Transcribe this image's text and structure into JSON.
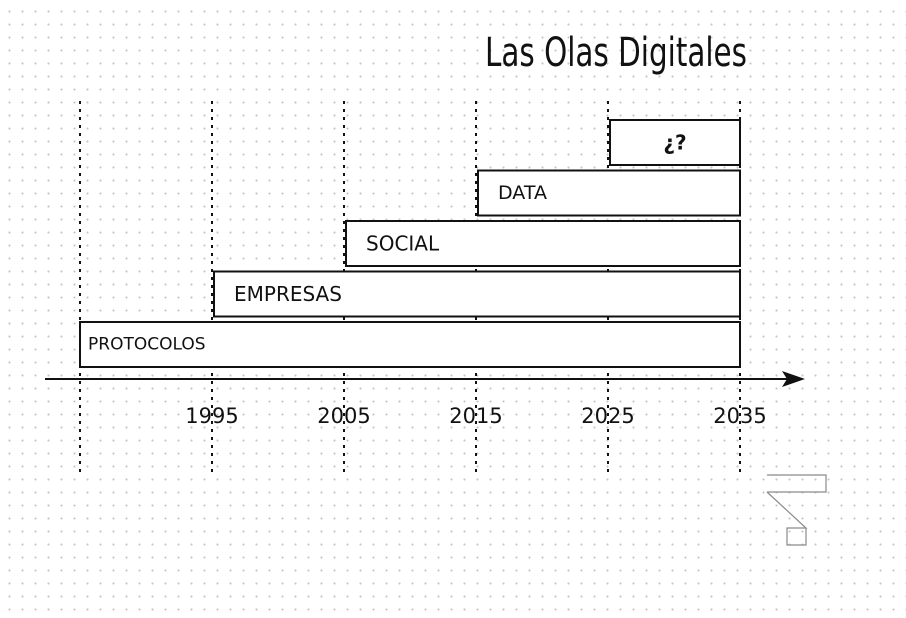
{
  "title": "Las Olas Digitales",
  "chart_data": {
    "type": "timeline",
    "axis": {
      "ticks": [
        "1995",
        "2005",
        "2015",
        "2025",
        "2035"
      ],
      "range": [
        1985,
        2035
      ]
    },
    "waves": [
      {
        "label": "PROTOCOLOS",
        "start": 1985,
        "end": 2035
      },
      {
        "label": "EMPRESAS",
        "start": 1995,
        "end": 2035
      },
      {
        "label": "SOCIAL",
        "start": 2005,
        "end": 2035
      },
      {
        "label": "DATA",
        "start": 2015,
        "end": 2035
      },
      {
        "label": "¿?",
        "start": 2025,
        "end": 2035
      }
    ]
  },
  "logo_icon": "logo-mark-icon"
}
